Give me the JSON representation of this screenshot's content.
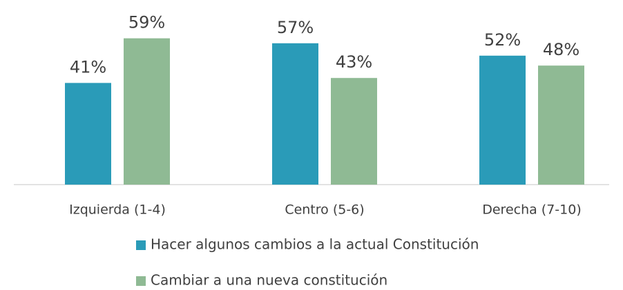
{
  "chart_data": {
    "type": "bar",
    "categories": [
      "Izquierda (1-4)",
      "Centro (5-6)",
      "Derecha (7-10)"
    ],
    "series": [
      {
        "name": "Hacer algunos cambios a la actual Constitución",
        "color": "#2a9bb8",
        "values": [
          41,
          57,
          52
        ],
        "value_labels": [
          "41%",
          "57%",
          "52%"
        ]
      },
      {
        "name": "Cambiar a una nueva constitución",
        "color": "#8fba94",
        "values": [
          59,
          43,
          48
        ],
        "value_labels": [
          "59%",
          "43%",
          "48%"
        ]
      }
    ]
  }
}
